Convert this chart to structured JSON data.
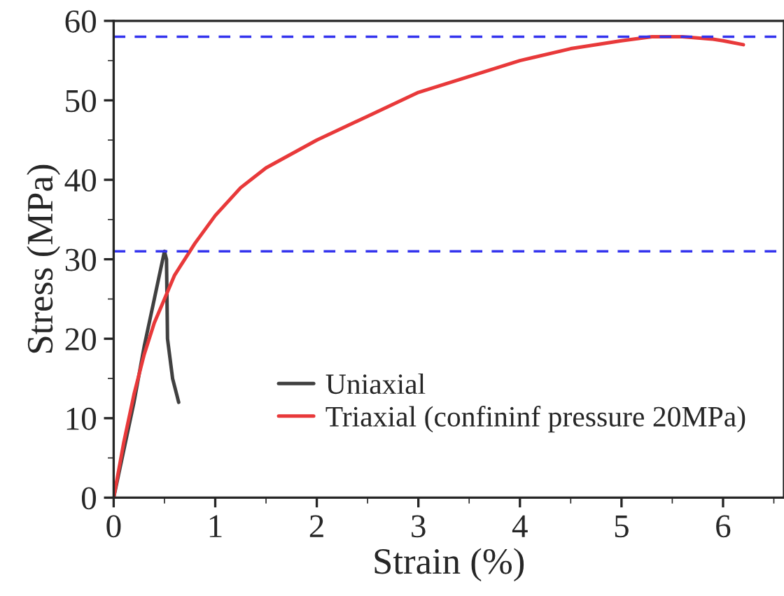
{
  "chart_data": {
    "type": "line",
    "xlabel": "Strain (%)",
    "ylabel": "Stress (MPa)",
    "xlim": [
      0,
      6.6
    ],
    "xticks": [
      0,
      1,
      2,
      3,
      4,
      5,
      6
    ],
    "ylim": [
      0,
      60
    ],
    "yticks": [
      0,
      10,
      20,
      30,
      40,
      50,
      60
    ],
    "grid": false,
    "legend": "bottom right",
    "line_style": "solid",
    "marker": "none",
    "series": [
      {
        "name": "Uniaxial",
        "color": "#404040",
        "x": [
          0,
          0.1,
          0.2,
          0.3,
          0.4,
          0.45,
          0.5,
          0.52,
          0.53,
          0.55,
          0.58,
          0.62,
          0.64
        ],
        "values": [
          0,
          6,
          12,
          19,
          25,
          28,
          31,
          30,
          20,
          18,
          15,
          13,
          12
        ]
      },
      {
        "name": "Triaxial (confininf pressure 20MPa)",
        "color": "#e8393a",
        "x": [
          0,
          0.1,
          0.2,
          0.3,
          0.4,
          0.5,
          0.6,
          0.7,
          0.8,
          1,
          1.25,
          1.5,
          2,
          2.5,
          3,
          3.5,
          4,
          4.5,
          5,
          5.3,
          5.6,
          5.9,
          6.0,
          6.2
        ],
        "values": [
          0,
          7,
          13,
          18,
          22,
          25,
          28,
          30,
          32,
          35.5,
          39,
          41.5,
          45,
          48,
          51,
          53,
          55,
          56.5,
          57.5,
          58,
          58,
          57.7,
          57.5,
          57
        ]
      }
    ],
    "ref_lines": [
      {
        "axis": "y",
        "value": 58,
        "color": "#3333ee",
        "line_style": "dashed"
      },
      {
        "axis": "y",
        "value": 31,
        "color": "#3333ee",
        "line_style": "dashed"
      }
    ]
  }
}
